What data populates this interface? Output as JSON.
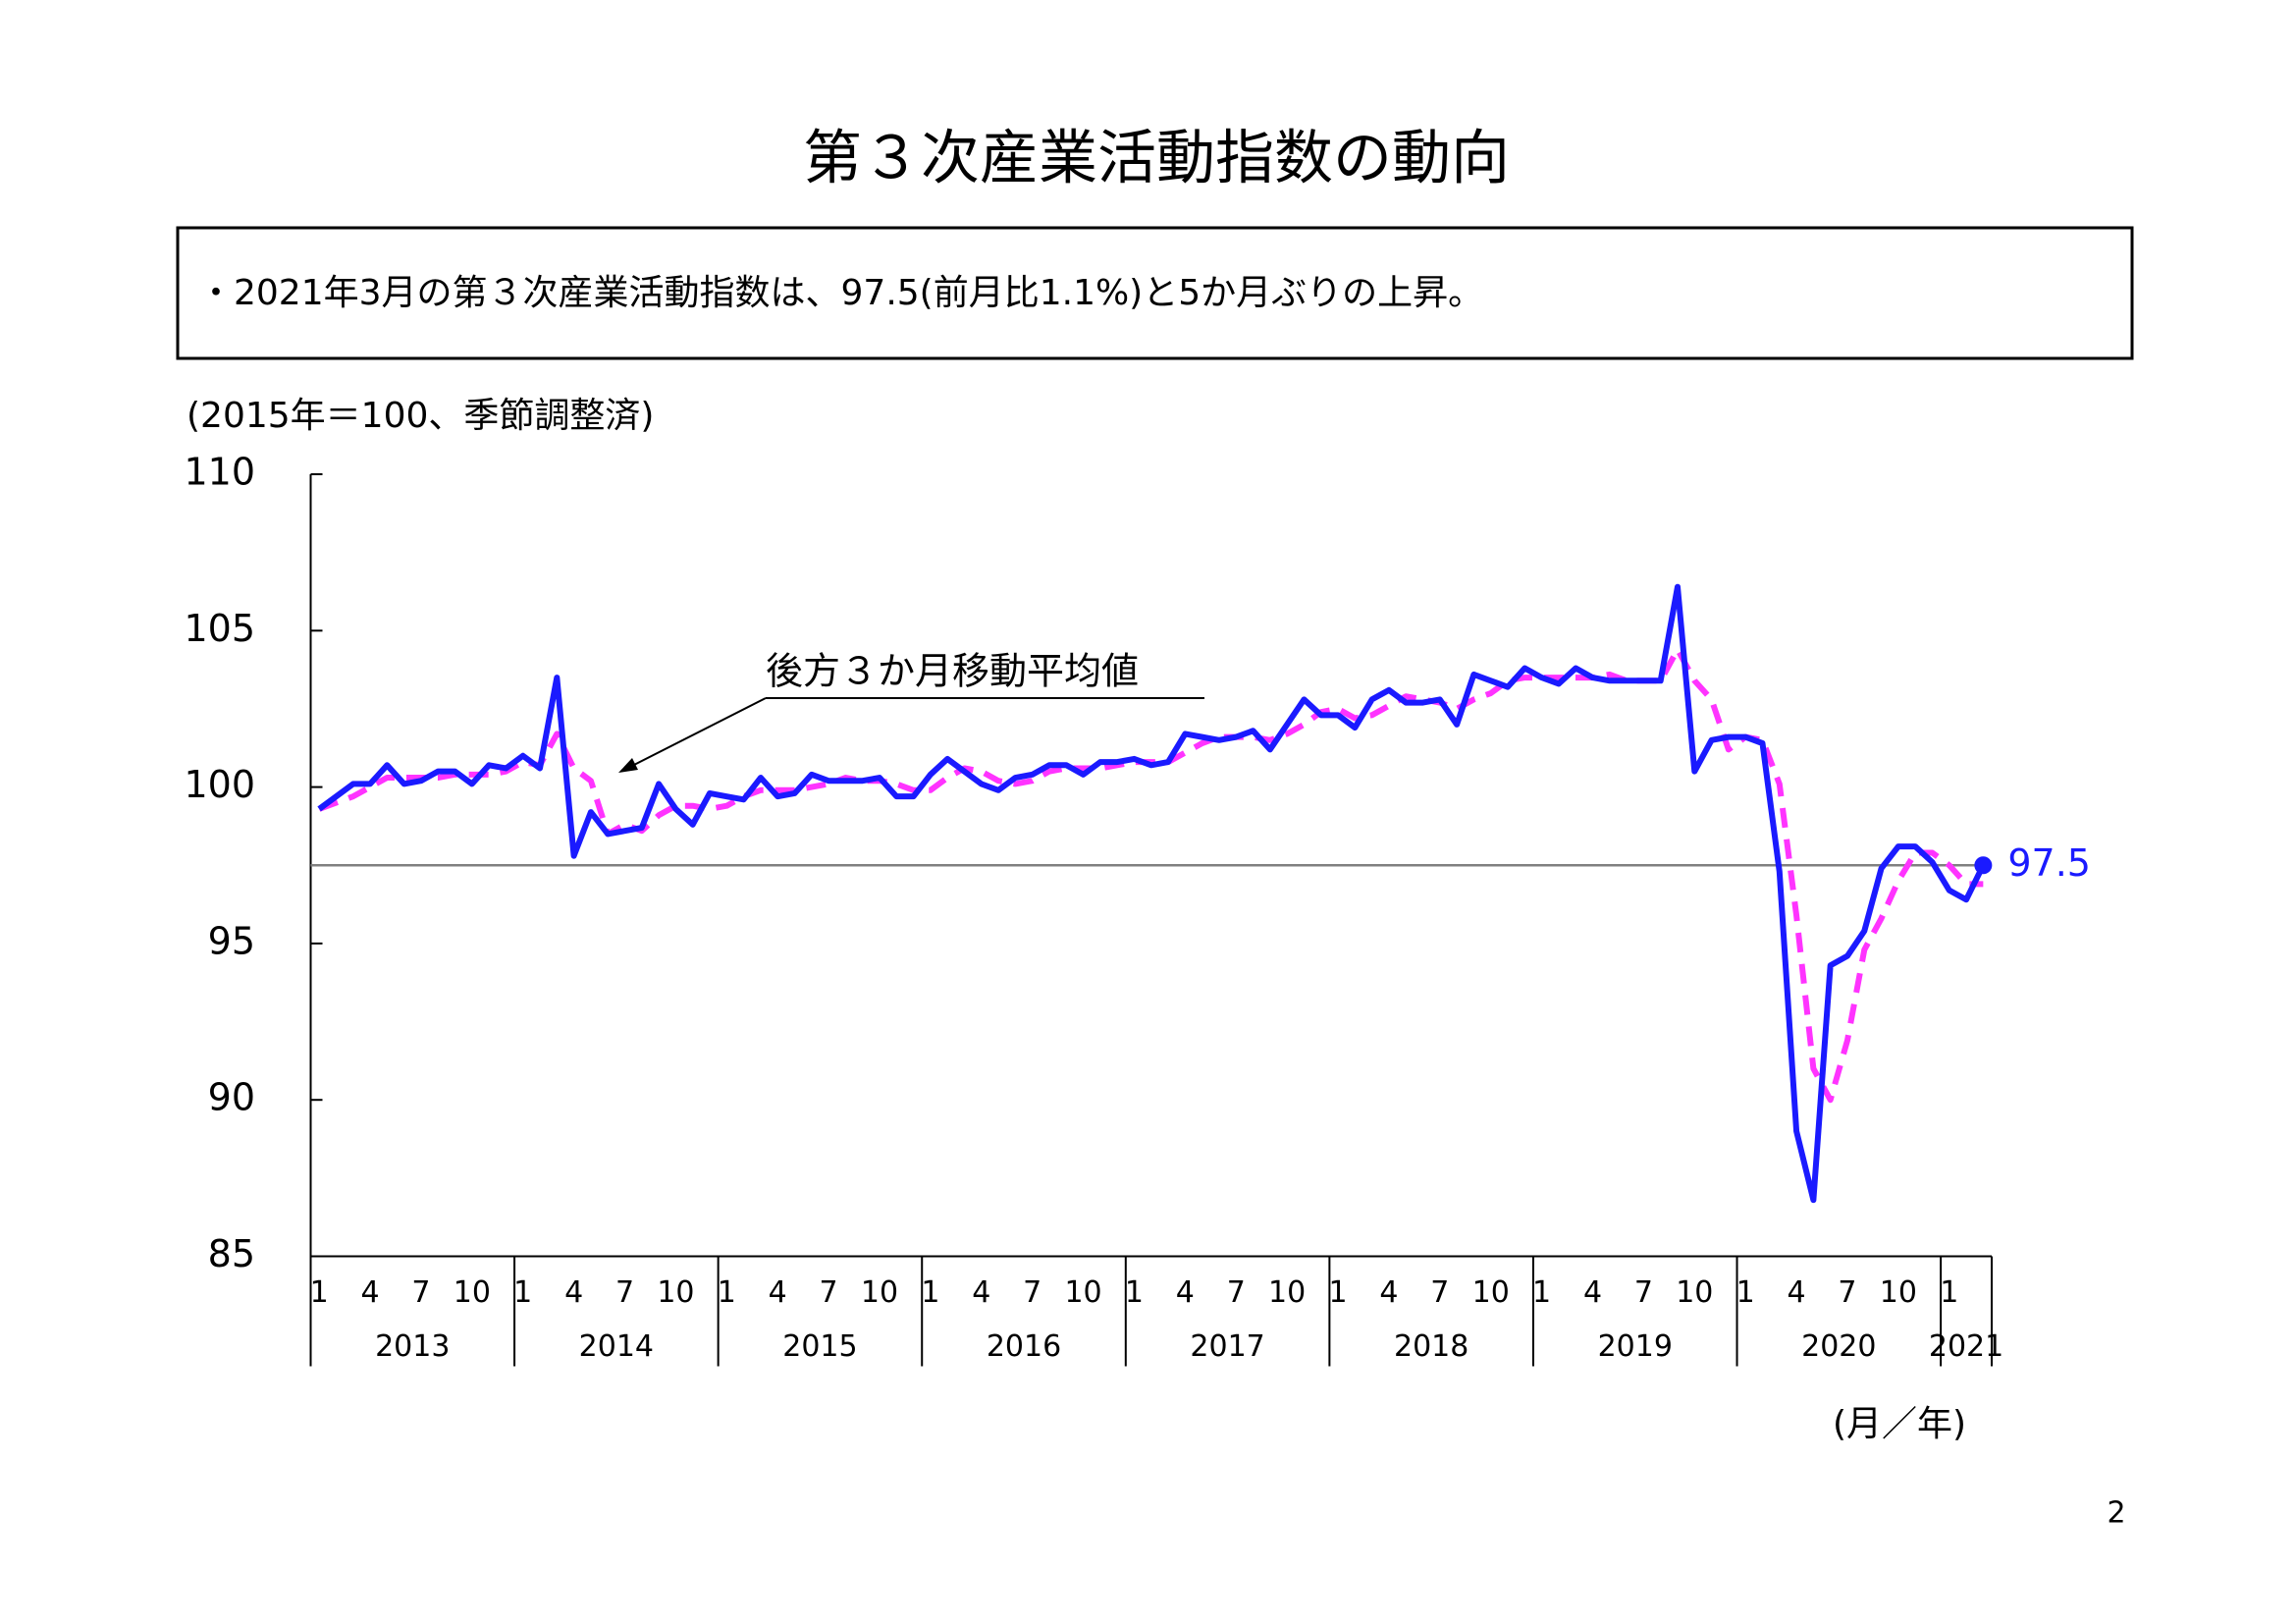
{
  "title": "第３次産業活動指数の動向",
  "summary": "・2021年3月の第３次産業活動指数は、97.5(前月比1.1%)と5か月ぶりの上昇。",
  "page_number": "2",
  "chart_data": {
    "type": "line",
    "y_label": "(2015年＝100、季節調整済)",
    "x_label": "(月／年)",
    "annotation": "後方３か月移動平均値",
    "years": [
      "2013",
      "2014",
      "2015",
      "2016",
      "2017",
      "2018",
      "2019",
      "2020",
      "2021"
    ],
    "categories": [
      "1",
      null,
      null,
      "4",
      null,
      null,
      "7",
      null,
      null,
      "10",
      null,
      null,
      "1",
      null,
      null,
      "4",
      null,
      null,
      "7",
      null,
      null,
      "10",
      null,
      null,
      "1",
      null,
      null,
      "4",
      null,
      null,
      "7",
      null,
      null,
      "10",
      null,
      null,
      "1",
      null,
      null,
      "4",
      null,
      null,
      "7",
      null,
      null,
      "10",
      null,
      null,
      "1",
      null,
      null,
      "4",
      null,
      null,
      "7",
      null,
      null,
      "10",
      null,
      null,
      "1",
      null,
      null,
      "4",
      null,
      null,
      "7",
      null,
      null,
      "10",
      null,
      null,
      "1",
      null,
      null,
      "4",
      null,
      null,
      "7",
      null,
      null,
      "10",
      null,
      null,
      "1",
      null,
      null,
      "4",
      null,
      null,
      "7",
      null,
      null,
      "10",
      null,
      null,
      "1",
      null,
      null
    ],
    "series": [
      {
        "color": "#1a1aff",
        "style": "solid",
        "values": [
          99.3,
          99.7,
          100.1,
          100.1,
          100.7,
          100.1,
          100.2,
          100.5,
          100.5,
          100.1,
          100.7,
          100.6,
          101.0,
          100.6,
          103.5,
          97.8,
          99.2,
          98.5,
          98.6,
          98.7,
          100.1,
          99.3,
          98.8,
          99.8,
          99.7,
          99.6,
          100.3,
          99.7,
          99.8,
          100.4,
          100.2,
          100.2,
          100.2,
          100.3,
          99.7,
          99.7,
          100.4,
          100.9,
          100.5,
          100.1,
          99.9,
          100.3,
          100.4,
          100.7,
          100.7,
          100.4,
          100.8,
          100.8,
          100.9,
          100.7,
          100.8,
          101.7,
          101.6,
          101.5,
          101.6,
          101.8,
          101.2,
          102.0,
          102.8,
          102.3,
          102.3,
          101.9,
          102.8,
          103.1,
          102.7,
          102.7,
          102.8,
          102.0,
          103.6,
          103.4,
          103.2,
          103.8,
          103.5,
          103.3,
          103.8,
          103.5,
          103.4,
          103.4,
          103.4,
          103.4,
          106.4,
          100.5,
          101.5,
          101.6,
          101.6,
          101.4,
          97.3,
          89.0,
          86.8,
          94.3,
          94.6,
          95.4,
          97.4,
          98.1,
          98.1,
          97.6,
          96.7,
          96.4,
          97.5
        ]
      },
      {
        "color": "#ff33ff",
        "style": "dashed",
        "values": [
          99.3,
          99.5,
          99.7,
          100.0,
          100.3,
          100.3,
          100.3,
          100.3,
          100.4,
          100.4,
          100.4,
          100.5,
          100.8,
          100.7,
          101.7,
          100.6,
          100.2,
          98.5,
          98.8,
          98.6,
          99.1,
          99.4,
          99.4,
          99.3,
          99.4,
          99.7,
          99.9,
          99.9,
          99.9,
          100.0,
          100.1,
          100.3,
          100.2,
          100.2,
          100.1,
          99.9,
          99.9,
          100.3,
          100.6,
          100.5,
          100.2,
          100.1,
          100.2,
          100.5,
          100.6,
          100.6,
          100.6,
          100.7,
          100.8,
          100.8,
          100.8,
          101.1,
          101.4,
          101.6,
          101.6,
          101.6,
          101.5,
          101.7,
          102.0,
          102.4,
          102.5,
          102.2,
          102.3,
          102.6,
          102.9,
          102.8,
          102.7,
          102.5,
          102.8,
          103.0,
          103.4,
          103.5,
          103.5,
          103.5,
          103.5,
          103.5,
          103.6,
          103.4,
          103.4,
          103.4,
          104.4,
          103.4,
          102.8,
          101.2,
          101.6,
          101.5,
          100.1,
          95.9,
          91.0,
          90.0,
          91.9,
          94.8,
          95.8,
          97.0,
          97.9,
          97.9,
          97.5,
          96.9,
          96.9
        ]
      }
    ],
    "reference_line": 97.5,
    "reference_color": "#808080",
    "ylim": [
      85,
      110
    ],
    "yticks": [
      85,
      90,
      95,
      100,
      105,
      110
    ]
  }
}
